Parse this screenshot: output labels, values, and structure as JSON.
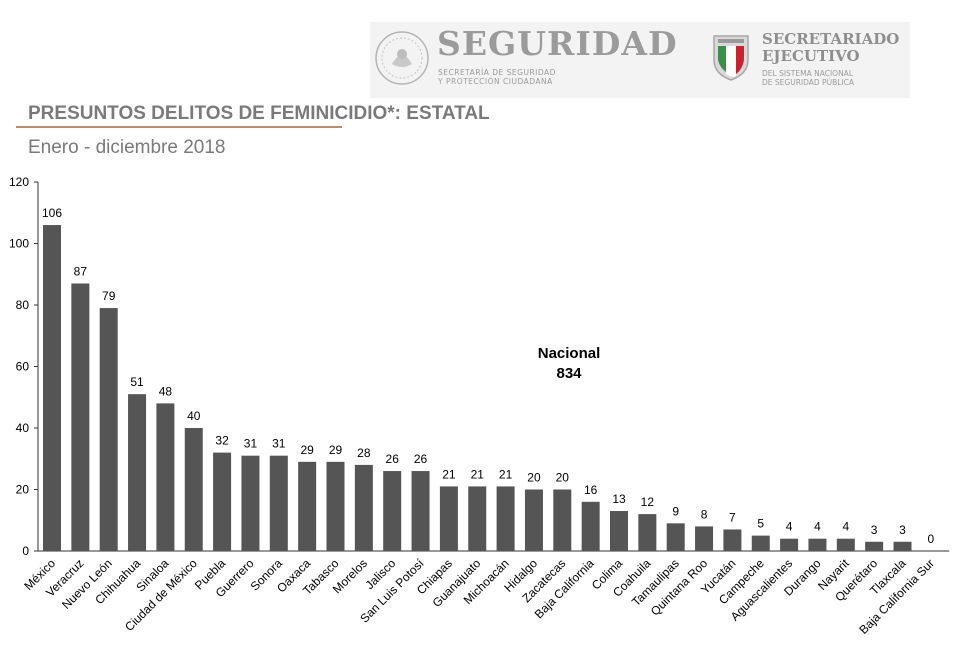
{
  "header": {
    "seguridad_title": "SEGURIDAD",
    "seguridad_subtitle": "SECRETARÍA DE SEGURIDAD\nY PROTECCIÓN CIUDADANA",
    "secretariado_title": "SECRETARIADO\nEJECUTIVO",
    "secretariado_subtitle": "DEL SISTEMA NACIONAL\nDE SEGURIDAD PÚBLICA"
  },
  "colors": {
    "bar": "#555555",
    "rule": "#b88e6b",
    "title": "#7a7a7a"
  },
  "chart_data": {
    "type": "bar",
    "title": "PRESUNTOS DELITOS DE FEMINICIDIO*: ESTATAL",
    "subtitle": "Enero - diciembre 2018",
    "categories": [
      "México",
      "Veracruz",
      "Nuevo León",
      "Chihuahua",
      "Sinaloa",
      "Ciudad de México",
      "Puebla",
      "Guerrero",
      "Sonora",
      "Oaxaca",
      "Tabasco",
      "Morelos",
      "Jalisco",
      "San Luis Potosí",
      "Chiapas",
      "Guanajuato",
      "Michoacán",
      "Hidalgo",
      "Zacatecas",
      "Baja California",
      "Colima",
      "Coahuila",
      "Tamaulipas",
      "Quintana Roo",
      "Yucatán",
      "Campeche",
      "Aguascalientes",
      "Durango",
      "Nayarit",
      "Querétaro",
      "Tlaxcala",
      "Baja California Sur"
    ],
    "values": [
      106,
      87,
      79,
      51,
      48,
      40,
      32,
      31,
      31,
      29,
      29,
      28,
      26,
      26,
      21,
      21,
      21,
      20,
      20,
      16,
      13,
      12,
      9,
      8,
      7,
      5,
      4,
      4,
      4,
      3,
      3,
      0
    ],
    "ylim": [
      0,
      120
    ],
    "yticks": [
      0,
      20,
      40,
      60,
      80,
      100,
      120
    ],
    "grid": false,
    "annotation": {
      "line1": "Nacional",
      "line2": "834"
    }
  }
}
